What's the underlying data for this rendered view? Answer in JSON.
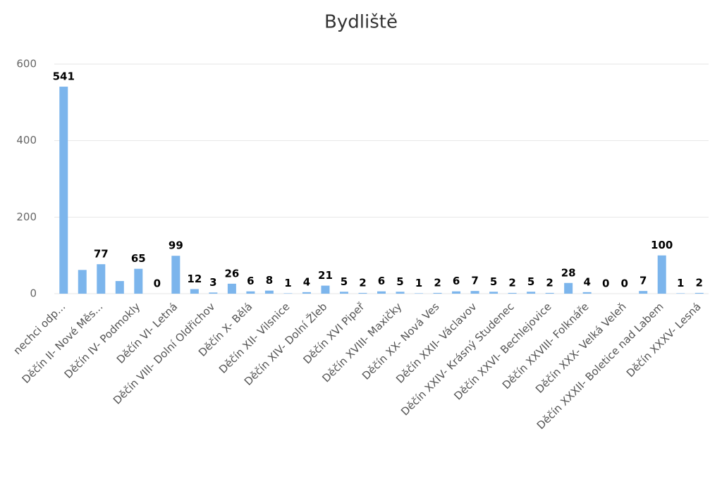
{
  "chart_data": {
    "type": "bar",
    "title": "Bydliště",
    "categories": [
      "nechci odp...",
      null,
      "Děčín II- Nové Měs...",
      null,
      "Děčín IV- Podmokly",
      null,
      "Děčín VI- Letná",
      null,
      "Děčín VIII- Dolní Oldřichov",
      null,
      "Děčín X- Bělá",
      null,
      "Děčín XII- Vilsnice",
      null,
      "Děčín XIV- Dolní Žleb",
      null,
      "Děčín XVI Pipeř",
      null,
      "Děčín XVIII- Maxičky",
      null,
      "Děčín XX- Nová Ves",
      null,
      "Děčín XXII- Václavov",
      null,
      "Děčín XXIV- Krásný Studenec",
      null,
      "Děčín XXVI- Bechlejovice",
      null,
      "Děčín XXVIII- Folknáře",
      null,
      "Děčín XXX- Velká Veleň",
      null,
      "Děčín XXXII- Boletice nad Labem",
      null,
      "Děčín XXXV- Lesná"
    ],
    "values": [
      541,
      62,
      77,
      33,
      65,
      0,
      99,
      12,
      3,
      26,
      6,
      8,
      1,
      4,
      21,
      5,
      2,
      6,
      5,
      1,
      2,
      6,
      7,
      5,
      2,
      5,
      2,
      28,
      4,
      0,
      0,
      7,
      100,
      1,
      2
    ],
    "value_labels": [
      541,
      null,
      77,
      null,
      65,
      0,
      99,
      12,
      3,
      26,
      6,
      8,
      1,
      4,
      21,
      5,
      2,
      6,
      5,
      1,
      2,
      6,
      7,
      5,
      2,
      5,
      2,
      28,
      4,
      0,
      0,
      7,
      100,
      1,
      2
    ],
    "color": "#7cb5ec",
    "ylim": [
      0,
      600
    ],
    "yticks": [
      0,
      200,
      400,
      600
    ],
    "grid": true
  }
}
